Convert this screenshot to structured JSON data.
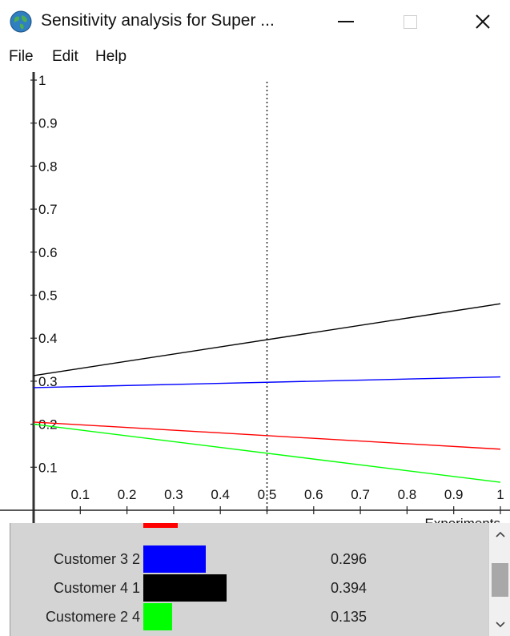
{
  "window": {
    "title": "Sensitivity analysis for Super ...",
    "icon": "globe-icon",
    "controls": {
      "minimize": "minimize-icon",
      "maximize": "maximize-icon",
      "close": "close-icon"
    }
  },
  "menu": {
    "items": [
      "File",
      "Edit",
      "Help"
    ]
  },
  "chart_data": {
    "type": "line",
    "xlabel": "Experiments",
    "ylabel": "",
    "xlim": [
      0,
      1
    ],
    "ylim": [
      0,
      1
    ],
    "x_ticks": [
      "0.1",
      "0.2",
      "0.3",
      "0.4",
      "0.5",
      "0.6",
      "0.7",
      "0.8",
      "0.9",
      "1"
    ],
    "y_ticks": [
      "0.1",
      "0.2",
      "0.3",
      "0.4",
      "0.5",
      "0.6",
      "0.7",
      "0.8",
      "0.9",
      "1"
    ],
    "marker_x": 0.5,
    "series": [
      {
        "color": "#000000",
        "x": [
          0,
          1
        ],
        "y": [
          0.313,
          0.48
        ]
      },
      {
        "color": "#0000ff",
        "x": [
          0,
          1
        ],
        "y": [
          0.285,
          0.31
        ]
      },
      {
        "color": "#ff0000",
        "x": [
          0,
          1
        ],
        "y": [
          0.205,
          0.142
        ]
      },
      {
        "color": "#00ff00",
        "x": [
          0,
          1
        ],
        "y": [
          0.2,
          0.065
        ]
      }
    ]
  },
  "legend": {
    "rows": [
      {
        "label": "Customer 3  2",
        "value": "0.296",
        "color": "#0000ff"
      },
      {
        "label": "Customer 4  1",
        "value": "0.394",
        "color": "#000000"
      },
      {
        "label": "Customere 2  4",
        "value": "0.135",
        "color": "#00ff00"
      }
    ],
    "partial_row_color": "#ff0000",
    "scroll_up_icon": "chevron-up-icon",
    "scroll_down_icon": "chevron-down-icon"
  }
}
